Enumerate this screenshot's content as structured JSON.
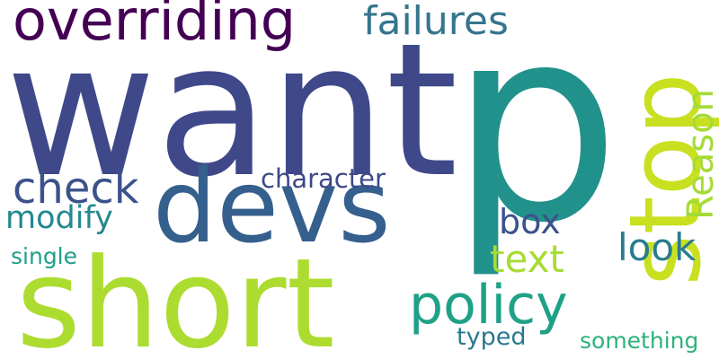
{
  "words": [
    {
      "text": "want",
      "color": "#3f4889"
    },
    {
      "text": "p",
      "color": "#21918c"
    },
    {
      "text": "stop",
      "color": "#c8e020"
    },
    {
      "text": "overriding",
      "color": "#440154"
    },
    {
      "text": "failures",
      "color": "#35758e"
    },
    {
      "text": "devs",
      "color": "#355f8d"
    },
    {
      "text": "short",
      "color": "#addc30"
    },
    {
      "text": "check",
      "color": "#3b528b"
    },
    {
      "text": "modify",
      "color": "#23898e"
    },
    {
      "text": "character",
      "color": "#3e4989"
    },
    {
      "text": "Reason",
      "color": "#a5db36"
    },
    {
      "text": "box",
      "color": "#3b528b"
    },
    {
      "text": "look",
      "color": "#287c8e"
    },
    {
      "text": "text",
      "color": "#a8db34"
    },
    {
      "text": "policy",
      "color": "#1fa187"
    },
    {
      "text": "single",
      "color": "#1f9e89"
    },
    {
      "text": "typed",
      "color": "#2a788e"
    },
    {
      "text": "something",
      "color": "#2db27d"
    }
  ]
}
